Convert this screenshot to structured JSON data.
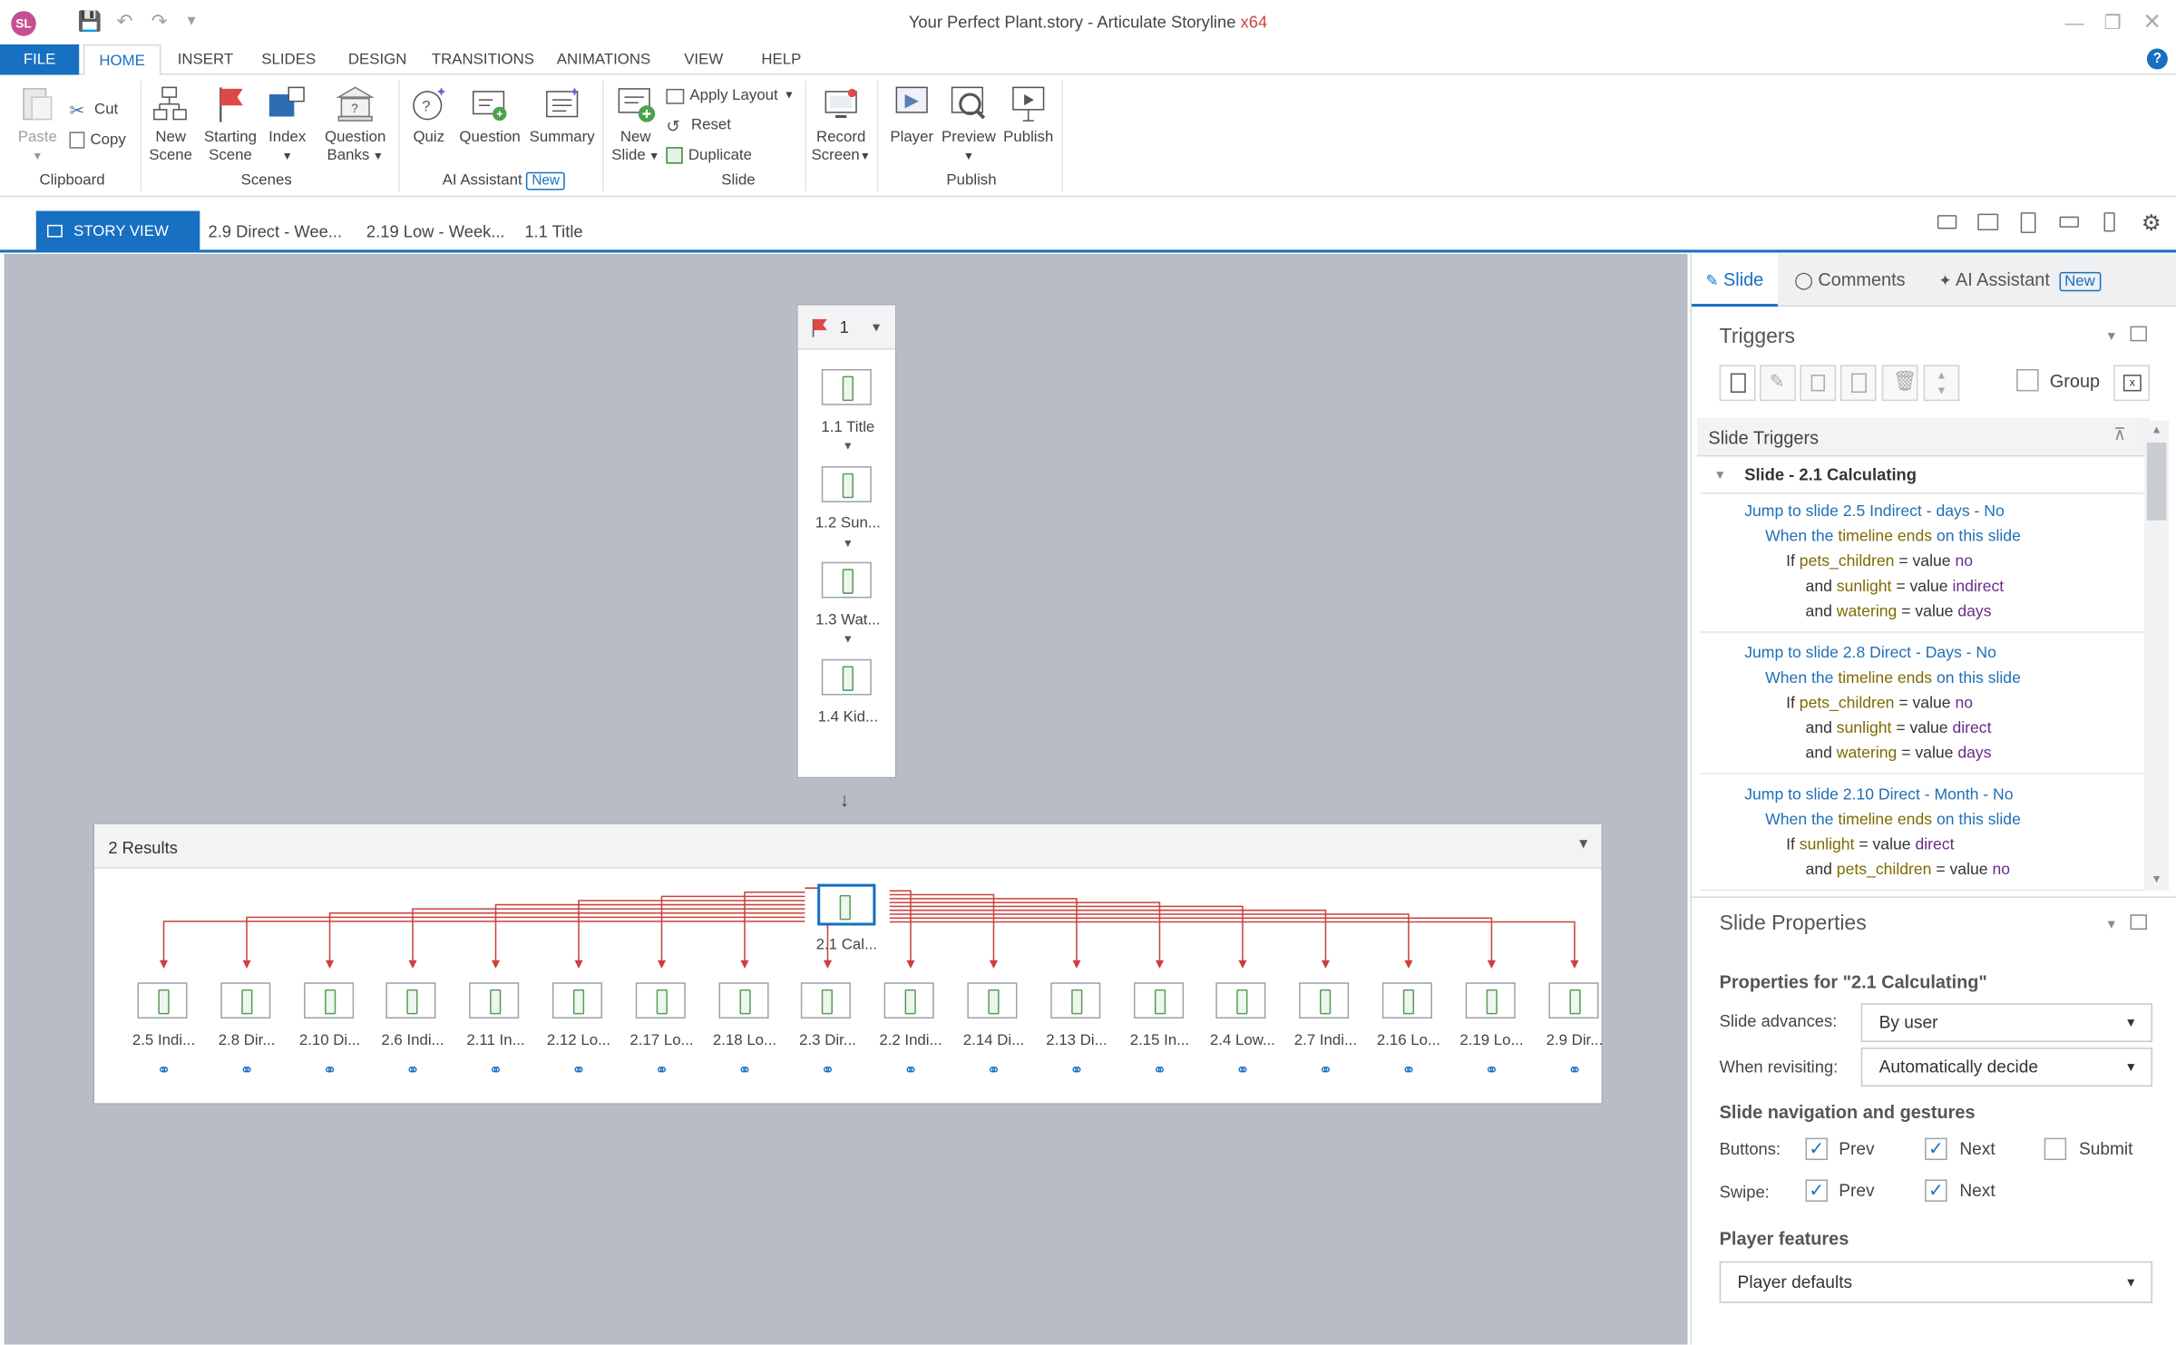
{
  "titlebar": {
    "logo": "SL",
    "title": "Your Perfect Plant.story - Articulate Storyline",
    "arch": "x64",
    "icons": [
      "save-icon",
      "undo-icon",
      "redo-icon",
      "customize-icon",
      "minimize-icon",
      "restore-icon",
      "close-icon"
    ]
  },
  "menu": {
    "tabs": [
      "FILE",
      "HOME",
      "INSERT",
      "SLIDES",
      "DESIGN",
      "TRANSITIONS",
      "ANIMATIONS",
      "VIEW",
      "HELP"
    ],
    "active": "HOME"
  },
  "ribbon": {
    "paste": "Paste",
    "cut": "Cut",
    "copy": "Copy",
    "clipboard": "Clipboard",
    "new_scene": [
      "New",
      "Scene"
    ],
    "starting_scene": [
      "Starting",
      "Scene"
    ],
    "index": "Index",
    "question_banks": [
      "Question",
      "Banks"
    ],
    "scenes": "Scenes",
    "quiz": "Quiz",
    "question": "Question",
    "summary": "Summary",
    "ai_assistant": "AI Assistant",
    "new_badge": "New",
    "new_slide": [
      "New",
      "Slide"
    ],
    "apply_layout": "Apply Layout",
    "reset": "Reset",
    "duplicate": "Duplicate",
    "slide": "Slide",
    "record_screen": [
      "Record",
      "Screen"
    ],
    "player": "Player",
    "preview": "Preview",
    "publish": "Publish",
    "publish_group": "Publish"
  },
  "storytabs": {
    "story_view": "STORY VIEW",
    "tabs": [
      "2.9 Direct - Wee...",
      "2.19 Low - Week...",
      "1.1 Title"
    ]
  },
  "scene1": {
    "number": "1",
    "slides": [
      "1.1 Title",
      "1.2 Sun...",
      "1.3 Wat...",
      "1.4 Kid..."
    ]
  },
  "scene2": {
    "title": "2 Results",
    "main_slide": "2.1 Cal...",
    "slides": [
      "2.5 Indi...",
      "2.8 Dir...",
      "2.10 Di...",
      "2.6 Indi...",
      "2.11 In...",
      "2.12 Lo...",
      "2.17 Lo...",
      "2.18 Lo...",
      "2.3 Dir...",
      "2.2 Indi...",
      "2.14 Di...",
      "2.13 Di...",
      "2.15 In...",
      "2.4 Low...",
      "2.7 Indi...",
      "2.16 Lo...",
      "2.19 Lo...",
      "2.9 Dir..."
    ]
  },
  "panel": {
    "tabs": [
      "Slide",
      "Comments",
      "AI Assistant"
    ],
    "new_badge": "New",
    "triggers_title": "Triggers",
    "group_label": "Group",
    "slide_triggers": "Slide Triggers",
    "slide_node": "Slide - 2.1 Calculating",
    "triggers": [
      {
        "jump": "Jump to slide",
        "target": "2.5 Indirect - days - No",
        "when": [
          "When the",
          "timeline ends",
          "on",
          "this slide"
        ],
        "conds": [
          [
            "If",
            "pets_children",
            "= value",
            "no"
          ],
          [
            "and",
            "sunlight",
            "= value",
            "indirect"
          ],
          [
            "and",
            "watering",
            "= value",
            "days"
          ]
        ]
      },
      {
        "jump": "Jump to slide",
        "target": "2.8 Direct - Days - No",
        "when": [
          "When the",
          "timeline ends",
          "on",
          "this slide"
        ],
        "conds": [
          [
            "If",
            "pets_children",
            "= value",
            "no"
          ],
          [
            "and",
            "sunlight",
            "= value",
            "direct"
          ],
          [
            "and",
            "watering",
            "= value",
            "days"
          ]
        ]
      },
      {
        "jump": "Jump to slide",
        "target": "2.10 Direct - Month - No",
        "when": [
          "When the",
          "timeline ends",
          "on",
          "this slide"
        ],
        "conds": [
          [
            "If",
            "sunlight",
            "= value",
            "direct"
          ],
          [
            "and",
            "pets_children",
            "= value",
            "no"
          ]
        ]
      }
    ],
    "props_title": "Slide Properties",
    "props_for": "Properties for \"2.1 Calculating\"",
    "slide_advances_label": "Slide advances:",
    "slide_advances": "By user",
    "revisiting_label": "When revisiting:",
    "revisiting": "Automatically decide",
    "nav_title": "Slide navigation and gestures",
    "buttons_label": "Buttons:",
    "swipe_label": "Swipe:",
    "prev": "Prev",
    "next": "Next",
    "submit": "Submit",
    "player_features": "Player features",
    "player_defaults": "Player defaults"
  }
}
